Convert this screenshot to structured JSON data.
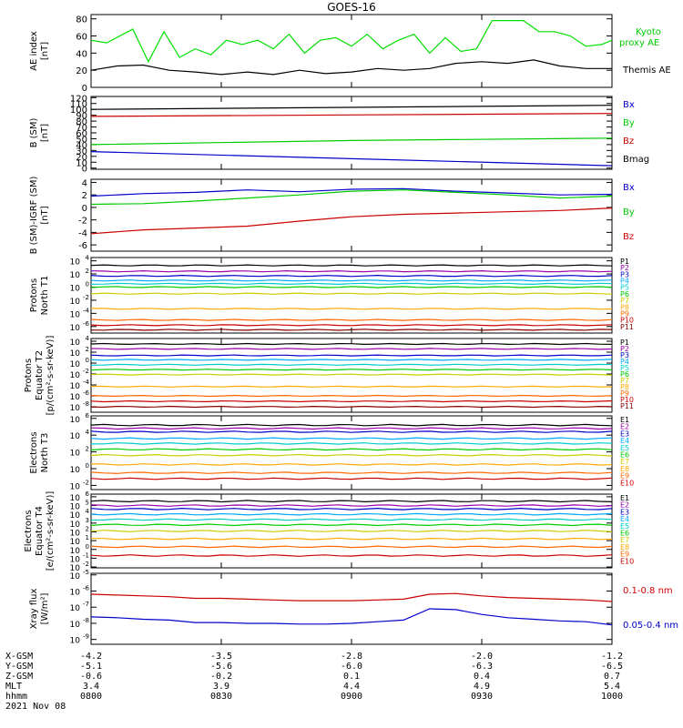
{
  "title": "GOES-16",
  "date": "2021 Nov 08",
  "chart_data": [
    {
      "type": "line",
      "ylabel": [
        "AE index",
        "[nT]"
      ],
      "yticks": [
        0,
        20,
        40,
        60,
        80
      ],
      "ylim": [
        0,
        85
      ],
      "legend": [
        "Kyoto",
        "proxy AE",
        "Themis AE"
      ],
      "series": [
        {
          "name": "Kyoto proxy AE",
          "color": "#00e000",
          "x": [
            0,
            0.03,
            0.08,
            0.11,
            0.14,
            0.17,
            0.2,
            0.23,
            0.26,
            0.29,
            0.32,
            0.35,
            0.38,
            0.41,
            0.44,
            0.47,
            0.5,
            0.53,
            0.56,
            0.59,
            0.62,
            0.65,
            0.68,
            0.71,
            0.74,
            0.77,
            0.8,
            0.83,
            0.86,
            0.89,
            0.92,
            0.95,
            0.98,
            1.0
          ],
          "y": [
            55,
            52,
            68,
            30,
            65,
            35,
            45,
            38,
            55,
            50,
            55,
            45,
            62,
            40,
            55,
            58,
            48,
            62,
            45,
            55,
            62,
            40,
            58,
            42,
            45,
            78,
            78,
            78,
            65,
            65,
            60,
            48,
            50,
            55
          ]
        },
        {
          "name": "Themis AE",
          "color": "#000000",
          "x": [
            0,
            0.05,
            0.1,
            0.15,
            0.2,
            0.25,
            0.3,
            0.35,
            0.4,
            0.45,
            0.5,
            0.55,
            0.6,
            0.65,
            0.7,
            0.75,
            0.8,
            0.85,
            0.9,
            0.95,
            1.0
          ],
          "y": [
            20,
            25,
            26,
            20,
            18,
            15,
            18,
            15,
            20,
            16,
            18,
            22,
            20,
            22,
            28,
            30,
            28,
            32,
            25,
            22,
            22
          ]
        }
      ]
    },
    {
      "type": "line",
      "ylabel": [
        "B (SM)",
        "[nT]"
      ],
      "yticks": [
        0,
        10,
        20,
        30,
        40,
        50,
        60,
        70,
        80,
        90,
        100,
        110,
        120
      ],
      "ylim": [
        -2,
        122
      ],
      "legend": [
        "Bx",
        "By",
        "Bz",
        "Bmag"
      ],
      "series": [
        {
          "name": "Bx",
          "color": "#0000cc",
          "x": [
            0,
            1
          ],
          "y": [
            28,
            4
          ]
        },
        {
          "name": "By",
          "color": "#00cc00",
          "x": [
            0,
            0.5,
            1
          ],
          "y": [
            40,
            47,
            51
          ]
        },
        {
          "name": "Bz",
          "color": "#cc0000",
          "x": [
            0,
            1
          ],
          "y": [
            88,
            93
          ]
        },
        {
          "name": "Bmag",
          "color": "#000000",
          "x": [
            0,
            1
          ],
          "y": [
            100,
            107
          ]
        }
      ]
    },
    {
      "type": "line",
      "ylabel": [
        "B (SM)-IGRF (SM)",
        "[nT]"
      ],
      "yticks": [
        -6,
        -4,
        -2,
        0,
        2,
        4
      ],
      "ylim": [
        -7,
        4.5
      ],
      "legend": [
        "Bx",
        "By",
        "Bz"
      ],
      "series": [
        {
          "name": "Bx",
          "color": "#0000cc",
          "x": [
            0,
            0.1,
            0.2,
            0.3,
            0.4,
            0.5,
            0.6,
            0.7,
            0.8,
            0.9,
            1.0
          ],
          "y": [
            1.8,
            2.2,
            2.4,
            2.8,
            2.5,
            2.9,
            3.0,
            2.6,
            2.3,
            2.0,
            2.1
          ]
        },
        {
          "name": "By",
          "color": "#00cc00",
          "x": [
            0,
            0.1,
            0.2,
            0.3,
            0.4,
            0.5,
            0.6,
            0.7,
            0.8,
            0.9,
            1.0
          ],
          "y": [
            0.5,
            0.6,
            1.0,
            1.5,
            2.0,
            2.6,
            2.8,
            2.4,
            2.0,
            1.5,
            1.8
          ]
        },
        {
          "name": "Bz",
          "color": "#cc0000",
          "x": [
            0,
            0.1,
            0.2,
            0.3,
            0.4,
            0.5,
            0.6,
            0.7,
            0.8,
            0.9,
            1.0
          ],
          "y": [
            -4.2,
            -3.6,
            -3.3,
            -3.0,
            -2.2,
            -1.5,
            -1.1,
            -0.9,
            -0.7,
            -0.5,
            -0.1
          ]
        }
      ]
    },
    {
      "type": "line",
      "ylabel": [
        "Protons",
        "North T1"
      ],
      "yticks": [
        "10^4",
        "10^2",
        "10^0",
        "10^-2",
        "10^-4",
        "10^-6"
      ],
      "ylim_log": [
        -7,
        4.5
      ],
      "legend": [
        "P1",
        "P2",
        "P3",
        "P4",
        "P5",
        "P6",
        "P7",
        "P8",
        "P9",
        "P10",
        "P11"
      ],
      "series": [
        {
          "name": "P1",
          "color": "#000000",
          "y": 3.3
        },
        {
          "name": "P2",
          "color": "#9900aa",
          "y": 2.4
        },
        {
          "name": "P3",
          "color": "#0000cc",
          "y": 1.7
        },
        {
          "name": "P4",
          "color": "#00aaff",
          "y": 1.0
        },
        {
          "name": "P5",
          "color": "#00cccc",
          "y": 0.5
        },
        {
          "name": "P6",
          "color": "#00cc00",
          "y": 0.0
        },
        {
          "name": "P7",
          "color": "#cccc00",
          "y": -1.0
        },
        {
          "name": "P8",
          "color": "#ffaa00",
          "y": -3.3
        },
        {
          "name": "P9",
          "color": "#ff6600",
          "y": -5.0
        },
        {
          "name": "P10",
          "color": "#cc0000",
          "y": -5.8
        },
        {
          "name": "P11",
          "color": "#880000",
          "y": -6.5
        }
      ]
    },
    {
      "type": "line",
      "ylabel": [
        "Protons",
        "Equator T2",
        "[p/(cm²-s-sr-keV)]"
      ],
      "yticks": [
        "10^4",
        "10^2",
        "10^0",
        "10^-2",
        "10^-4",
        "10^-6",
        "10^-8"
      ],
      "ylim_log": [
        -9,
        4.5
      ],
      "legend": [
        "P1",
        "P2",
        "P3",
        "P4",
        "P5",
        "P6",
        "P7",
        "P8",
        "P9",
        "P10",
        "P11"
      ],
      "series": [
        {
          "name": "P1",
          "color": "#000000",
          "y": 3.5
        },
        {
          "name": "P2",
          "color": "#9900aa",
          "y": 2.6
        },
        {
          "name": "P3",
          "color": "#0000cc",
          "y": 1.4
        },
        {
          "name": "P4",
          "color": "#00aaff",
          "y": 0.6
        },
        {
          "name": "P5",
          "color": "#00cccc",
          "y": -0.3
        },
        {
          "name": "P6",
          "color": "#00cc00",
          "y": -1.2
        },
        {
          "name": "P7",
          "color": "#cccc00",
          "y": -2.1
        },
        {
          "name": "P8",
          "color": "#ffaa00",
          "y": -4.3
        },
        {
          "name": "P9",
          "color": "#ff6600",
          "y": -6.0
        },
        {
          "name": "P10",
          "color": "#cc0000",
          "y": -7.0
        },
        {
          "name": "P11",
          "color": "#880000",
          "y": -8.0
        }
      ]
    },
    {
      "type": "line",
      "ylabel": [
        "Electrons",
        "North T3"
      ],
      "yticks": [
        "10^6",
        "10^4",
        "10^2",
        "10^0",
        "10^-2"
      ],
      "ylim_log": [
        -2.5,
        6.3
      ],
      "legend": [
        "E1",
        "E2",
        "E3",
        "E4",
        "E5",
        "E6",
        "E7",
        "E8",
        "E9",
        "E10"
      ],
      "series": [
        {
          "name": "E1",
          "color": "#000000",
          "y": 5.2
        },
        {
          "name": "E2",
          "color": "#9900aa",
          "y": 4.8
        },
        {
          "name": "E3",
          "color": "#0000cc",
          "y": 4.4
        },
        {
          "name": "E4",
          "color": "#00aaff",
          "y": 3.6
        },
        {
          "name": "E5",
          "color": "#00cccc",
          "y": 3.0
        },
        {
          "name": "E6",
          "color": "#00cc00",
          "y": 2.3
        },
        {
          "name": "E7",
          "color": "#cccc00",
          "y": 1.6
        },
        {
          "name": "E8",
          "color": "#ffaa00",
          "y": 0.5
        },
        {
          "name": "E9",
          "color": "#ff6600",
          "y": -0.5
        },
        {
          "name": "E10",
          "color": "#cc0000",
          "y": -1.2
        }
      ]
    },
    {
      "type": "line",
      "ylabel": [
        "Electrons",
        "Equator T4",
        "[e/(cm²-s-sr-keV)]"
      ],
      "yticks": [
        "10^6",
        "10^5",
        "10^4",
        "10^3",
        "10^2",
        "10^1",
        "10^0",
        "10^-1",
        "10^-2"
      ],
      "ylim_log": [
        -2.1,
        6.3
      ],
      "legend": [
        "E1",
        "E2",
        "E3",
        "E4",
        "E5",
        "E6",
        "E7",
        "E8",
        "E9",
        "E10"
      ],
      "series": [
        {
          "name": "E1",
          "color": "#000000",
          "y": 5.5
        },
        {
          "name": "E2",
          "color": "#9900aa",
          "y": 5.0
        },
        {
          "name": "E3",
          "color": "#0000cc",
          "y": 4.6
        },
        {
          "name": "E4",
          "color": "#00aaff",
          "y": 4.0
        },
        {
          "name": "E5",
          "color": "#00cccc",
          "y": 3.4
        },
        {
          "name": "E6",
          "color": "#00cc00",
          "y": 2.8
        },
        {
          "name": "E7",
          "color": "#cccc00",
          "y": 2.1
        },
        {
          "name": "E8",
          "color": "#ffaa00",
          "y": 1.2
        },
        {
          "name": "E9",
          "color": "#ff6600",
          "y": 0.3
        },
        {
          "name": "E10",
          "color": "#cc0000",
          "y": -0.7
        }
      ]
    },
    {
      "type": "line",
      "ylabel": [
        "Xray flux",
        "[W/m²]"
      ],
      "yticks": [
        "10^-5",
        "10^-6",
        "10^-7",
        "10^-8",
        "10^-9"
      ],
      "ylim_log": [
        -9.3,
        -4.9
      ],
      "legend": [
        "0.1-0.8 nm",
        "0.05-0.4 nm"
      ],
      "series": [
        {
          "name": "0.1-0.8 nm",
          "color": "#cc0000",
          "x": [
            0,
            0.05,
            0.1,
            0.15,
            0.2,
            0.25,
            0.3,
            0.35,
            0.4,
            0.45,
            0.5,
            0.55,
            0.6,
            0.65,
            0.7,
            0.75,
            0.8,
            0.85,
            0.9,
            0.95,
            1.0
          ],
          "y": [
            -6.2,
            -6.25,
            -6.3,
            -6.35,
            -6.45,
            -6.45,
            -6.5,
            -6.55,
            -6.6,
            -6.6,
            -6.6,
            -6.55,
            -6.5,
            -6.2,
            -6.15,
            -6.3,
            -6.4,
            -6.45,
            -6.5,
            -6.55,
            -6.65
          ]
        },
        {
          "name": "0.05-0.4 nm",
          "color": "#0000cc",
          "x": [
            0,
            0.05,
            0.1,
            0.15,
            0.2,
            0.25,
            0.3,
            0.35,
            0.4,
            0.45,
            0.5,
            0.55,
            0.6,
            0.65,
            0.7,
            0.75,
            0.8,
            0.85,
            0.9,
            0.95,
            1.0
          ],
          "y": [
            -7.6,
            -7.65,
            -7.75,
            -7.8,
            -7.95,
            -7.95,
            -8.0,
            -8.0,
            -8.05,
            -8.05,
            -8.0,
            -7.9,
            -7.8,
            -7.1,
            -7.15,
            -7.45,
            -7.65,
            -7.75,
            -7.85,
            -7.9,
            -8.1
          ]
        }
      ]
    }
  ],
  "x_axis": {
    "row_labels": [
      "X-GSM",
      "Y-GSM",
      "Z-GSM",
      "MLT",
      "hhmm"
    ],
    "ticks": [
      {
        "values": [
          "-4.2",
          "-5.1",
          "-0.6",
          "3.4",
          "0800"
        ]
      },
      {
        "values": [
          "-3.5",
          "-5.6",
          "-0.2",
          "3.9",
          "0830"
        ]
      },
      {
        "values": [
          "-2.8",
          "-6.0",
          "0.1",
          "4.4",
          "0900"
        ]
      },
      {
        "values": [
          "-2.0",
          "-6.3",
          "0.4",
          "4.9",
          "0930"
        ]
      },
      {
        "values": [
          "-1.2",
          "-6.5",
          "0.7",
          "5.4",
          "1000"
        ]
      }
    ]
  }
}
